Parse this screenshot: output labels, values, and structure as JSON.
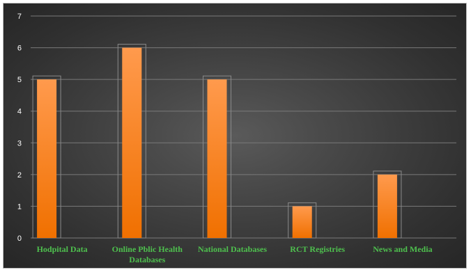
{
  "chart_data": {
    "type": "bar",
    "title": "",
    "xlabel": "",
    "ylabel": "",
    "categories": [
      "Hodpital Data",
      "Online Pblic Health Databases",
      "National Databases",
      "RCT Registries",
      "News and Media"
    ],
    "category_lines": [
      [
        "Hodpital Data"
      ],
      [
        "Online Pblic Health",
        "Databases"
      ],
      [
        "National Databases"
      ],
      [
        "RCT Registries"
      ],
      [
        "News and Media"
      ]
    ],
    "values": [
      5,
      6,
      5,
      1,
      2
    ],
    "ylim": [
      0,
      7
    ],
    "yticks": [
      0,
      1,
      2,
      3,
      4,
      5,
      6,
      7
    ],
    "grid": true,
    "legend": "none",
    "colors": {
      "bar_top": "#ff9a4d",
      "bar_bottom": "#f07000",
      "grid": "#7a7a7a",
      "tick_text": "#ffffff",
      "category_text": "#4ec04e"
    }
  }
}
